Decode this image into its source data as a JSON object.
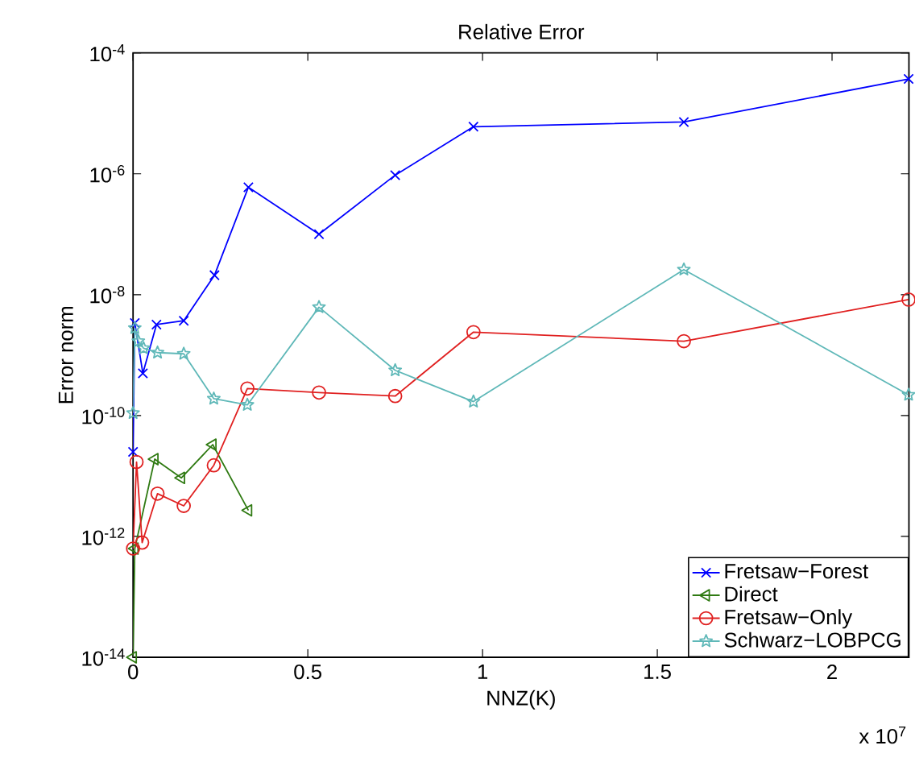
{
  "chart_data": {
    "type": "line",
    "title": "Relative Error",
    "xlabel": "NNZ(K)",
    "ylabel": "Error norm",
    "annotations": [
      "x 10$^{7}$"
    ],
    "log": "y",
    "legend": "bottom right",
    "grid": false,
    "line_style": "solid",
    "xlim": [
      0,
      2.22
    ],
    "xticks": [
      0,
      0.5,
      1,
      1.5,
      2
    ],
    "ylim": [
      1e-14,
      0.0001
    ],
    "yticks": [
      {
        "value": 1e-14,
        "label": "10$^{-14}$"
      },
      {
        "value": 1e-12,
        "label": "10$^{-12}$"
      },
      {
        "value": 1e-10,
        "label": "10$^{-10}$"
      },
      {
        "value": 1e-08,
        "label": "10$^{-8}$"
      },
      {
        "value": 1e-06,
        "label": "10$^{-6}$"
      },
      {
        "value": 0.0001,
        "label": "10$^{-4}$"
      }
    ],
    "series": [
      {
        "name": "Fretsaw−Forest",
        "color": "#0000ff",
        "marker": "cross",
        "x": [
          0,
          0.005,
          0.028,
          0.067,
          0.145,
          0.233,
          0.33,
          0.532,
          0.75,
          0.974,
          1.576,
          2.219
        ],
        "values": [
          2.5e-11,
          3.4e-09,
          5e-10,
          3.2e-09,
          3.7e-09,
          2.1e-08,
          6e-07,
          1e-07,
          9.5e-07,
          6e-06,
          7.2e-06,
          3.7e-05
        ]
      },
      {
        "name": "Direct",
        "color": "#2f7a12",
        "marker": "triangle",
        "x": [
          0,
          0.005,
          0.062,
          0.138,
          0.228,
          0.33
        ],
        "values": [
          1e-14,
          6.3e-13,
          1.9e-11,
          9.3e-12,
          3.3e-11,
          2.7e-12
        ]
      },
      {
        "name": "Fretsaw−Only",
        "color": "#e02020",
        "marker": "circle",
        "x": [
          0,
          0.01,
          0.026,
          0.07,
          0.145,
          0.231,
          0.327,
          0.532,
          0.75,
          0.974,
          1.576,
          2.219
        ],
        "values": [
          6.3e-13,
          1.7e-11,
          7.9e-13,
          5.1e-12,
          3.2e-12,
          1.5e-11,
          2.8e-10,
          2.4e-10,
          2.1e-10,
          2.4e-09,
          1.7e-09,
          8.3e-09
        ]
      },
      {
        "name": "Schwarz−LOBPCG",
        "color": "#5fb8b8",
        "marker": "star",
        "x": [
          0,
          0.005,
          0.015,
          0.03,
          0.07,
          0.145,
          0.231,
          0.327,
          0.532,
          0.75,
          0.974,
          1.576,
          2.219
        ],
        "values": [
          1.1e-10,
          2.8e-09,
          1.7e-09,
          1.3e-09,
          1.1e-09,
          1.05e-09,
          1.9e-10,
          1.5e-10,
          6.2e-09,
          5.6e-10,
          1.7e-10,
          2.6e-08,
          2.2e-10
        ]
      }
    ]
  }
}
